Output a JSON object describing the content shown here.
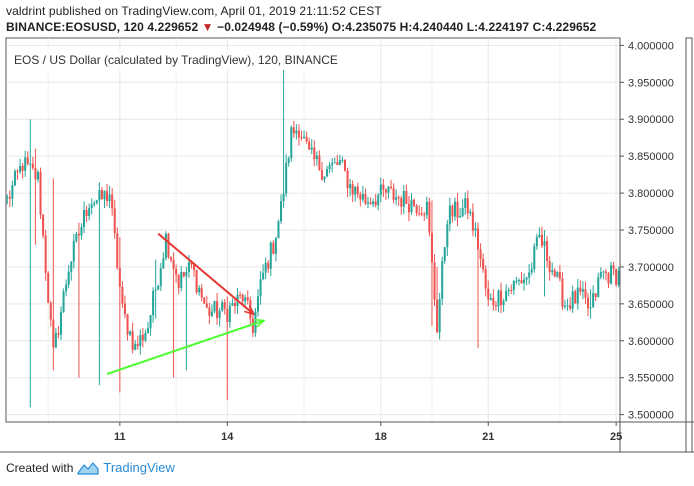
{
  "header": {
    "line1": "valdrint published on TradingView.com, April 01, 2019 21:11:52 CEST",
    "symbol": "BINANCE:EOSUSD, 120",
    "last": "4.229652",
    "arrow": "▼",
    "change": "−0.024948 (−0.59%)",
    "o_label": "O:",
    "o": "4.235075",
    "h_label": "H:",
    "h": "4.240440",
    "l_label": "L:",
    "l": "4.224197",
    "c_label": "C:",
    "c": "4.229652"
  },
  "footer": {
    "created_with": "Created with",
    "brand": "TradingView"
  },
  "colors": {
    "up": "#26a69a",
    "down": "#ef5350",
    "grid": "#e6e6e6",
    "axis": "#555555",
    "red_line": "#e53935",
    "green_line": "#4cff2f"
  },
  "chart_data": {
    "type": "candlestick",
    "title": "EOS / US Dollar (calculated by TradingView), 120, BINANCE",
    "x_tick_labels": [
      "11",
      "14",
      "18",
      "21",
      "25"
    ],
    "y_tick_labels": [
      "4.000000",
      "3.950000",
      "3.900000",
      "3.850000",
      "3.800000",
      "3.750000",
      "3.700000",
      "3.650000",
      "3.600000",
      "3.550000",
      "3.500000"
    ],
    "ylim": [
      3.49,
      4.01
    ],
    "grid": true,
    "anchors": [
      {
        "bar": 0,
        "price": 3.79
      },
      {
        "bar": 6,
        "price": 3.84
      },
      {
        "bar": 12,
        "price": 3.82
      },
      {
        "bar": 18,
        "price": 3.58
      },
      {
        "bar": 24,
        "price": 3.7
      },
      {
        "bar": 32,
        "price": 3.79
      },
      {
        "bar": 36,
        "price": 3.79
      },
      {
        "bar": 40,
        "price": 3.8
      },
      {
        "bar": 45,
        "price": 3.64
      },
      {
        "bar": 50,
        "price": 3.59
      },
      {
        "bar": 55,
        "price": 3.62
      },
      {
        "bar": 62,
        "price": 3.74
      },
      {
        "bar": 67,
        "price": 3.68
      },
      {
        "bar": 72,
        "price": 3.7
      },
      {
        "bar": 78,
        "price": 3.64
      },
      {
        "bar": 86,
        "price": 3.64
      },
      {
        "bar": 92,
        "price": 3.66
      },
      {
        "bar": 96,
        "price": 3.62
      },
      {
        "bar": 100,
        "price": 3.69
      },
      {
        "bar": 104,
        "price": 3.73
      },
      {
        "bar": 107,
        "price": 3.78
      },
      {
        "bar": 111,
        "price": 3.88
      },
      {
        "bar": 114,
        "price": 3.89
      },
      {
        "bar": 118,
        "price": 3.85
      },
      {
        "bar": 124,
        "price": 3.83
      },
      {
        "bar": 130,
        "price": 3.84
      },
      {
        "bar": 134,
        "price": 3.81
      },
      {
        "bar": 140,
        "price": 3.79
      },
      {
        "bar": 148,
        "price": 3.8
      },
      {
        "bar": 156,
        "price": 3.79
      },
      {
        "bar": 164,
        "price": 3.78
      },
      {
        "bar": 168,
        "price": 3.62
      },
      {
        "bar": 172,
        "price": 3.77
      },
      {
        "bar": 180,
        "price": 3.78
      },
      {
        "bar": 184,
        "price": 3.73
      },
      {
        "bar": 188,
        "price": 3.65
      },
      {
        "bar": 196,
        "price": 3.67
      },
      {
        "bar": 204,
        "price": 3.69
      },
      {
        "bar": 208,
        "price": 3.74
      },
      {
        "bar": 214,
        "price": 3.69
      },
      {
        "bar": 218,
        "price": 3.65
      },
      {
        "bar": 224,
        "price": 3.66
      },
      {
        "bar": 228,
        "price": 3.64
      },
      {
        "bar": 232,
        "price": 3.69
      }
    ],
    "spikes": [
      {
        "bar": 9,
        "high": 3.9,
        "low": 3.51
      },
      {
        "bar": 11,
        "high": 3.86,
        "low": 3.73
      },
      {
        "bar": 18,
        "high": 3.82,
        "low": 3.56
      },
      {
        "bar": 28,
        "high": 3.76,
        "low": 3.55
      },
      {
        "bar": 36,
        "high": 3.66,
        "low": 3.54
      },
      {
        "bar": 44,
        "high": 3.74,
        "low": 3.53
      },
      {
        "bar": 58,
        "high": 3.71,
        "low": 3.63
      },
      {
        "bar": 65,
        "high": 3.65,
        "low": 3.55
      },
      {
        "bar": 70,
        "high": 3.7,
        "low": 3.56
      },
      {
        "bar": 86,
        "high": 3.66,
        "low": 3.52
      },
      {
        "bar": 108,
        "high": 3.98,
        "low": 3.78
      },
      {
        "bar": 166,
        "high": 3.79,
        "low": 3.62
      },
      {
        "bar": 168,
        "high": 3.7,
        "low": 3.61
      },
      {
        "bar": 184,
        "high": 3.76,
        "low": 3.59
      },
      {
        "bar": 210,
        "high": 3.75,
        "low": 3.66
      },
      {
        "bar": 228,
        "high": 3.67,
        "low": 3.63
      }
    ],
    "annotations": [
      {
        "type": "arrow",
        "color": "red",
        "from": {
          "bar": 59,
          "price": 3.745
        },
        "to": {
          "bar": 96,
          "price": 3.637
        }
      },
      {
        "type": "arrow",
        "color": "green",
        "from": {
          "bar": 39,
          "price": 3.555
        },
        "to": {
          "bar": 100,
          "price": 3.627
        }
      }
    ]
  }
}
